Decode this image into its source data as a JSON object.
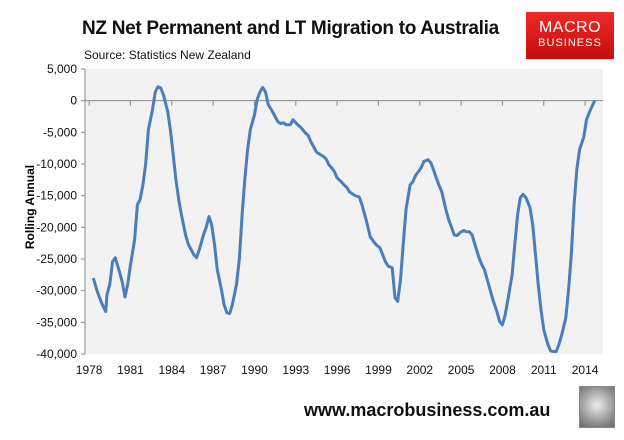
{
  "header": {
    "title": "NZ Net Permanent and LT Migration to Australia",
    "source": "Source: Statistics New Zealand"
  },
  "logo": {
    "line1": "MACRO",
    "line2": "BUSINESS"
  },
  "footer": {
    "url": "www.macrobusiness.com.au"
  },
  "colors": {
    "line": "#4a7ebb",
    "plot_bg": "#f2f2f2",
    "logo": "#e01b1b"
  },
  "chart_data": {
    "type": "line",
    "title": "NZ Net Permanent and LT Migration to Australia",
    "xlabel": "",
    "ylabel": "Rolling Annual",
    "ylim": [
      -40000,
      5000
    ],
    "xlim": [
      1977.7,
      2015.3
    ],
    "yticks": [
      5000,
      0,
      -5000,
      -10000,
      -15000,
      -20000,
      -25000,
      -30000,
      -35000,
      -40000
    ],
    "ytick_labels": [
      "5,000",
      "0",
      "-5,000",
      "-10,000",
      "-15,000",
      "-20,000",
      "-25,000",
      "-30,000",
      "-35,000",
      "-40,000"
    ],
    "xticks": [
      1978,
      1981,
      1984,
      1987,
      1990,
      1993,
      1996,
      1999,
      2002,
      2005,
      2008,
      2011,
      2014
    ],
    "xtick_labels": [
      "1978",
      "1981",
      "1984",
      "1987",
      "1990",
      "1993",
      "1996",
      "1999",
      "2002",
      "2005",
      "2008",
      "2011",
      "2014"
    ],
    "grid": false,
    "series": [
      {
        "name": "Rolling Annual",
        "points": [
          [
            1978.3,
            -28000
          ],
          [
            1978.6,
            -30200
          ],
          [
            1978.9,
            -31900
          ],
          [
            1979.2,
            -33300
          ],
          [
            1979.3,
            -30600
          ],
          [
            1979.5,
            -29000
          ],
          [
            1979.7,
            -25400
          ],
          [
            1979.9,
            -24800
          ],
          [
            1980.2,
            -27000
          ],
          [
            1980.4,
            -28600
          ],
          [
            1980.6,
            -31000
          ],
          [
            1980.8,
            -29000
          ],
          [
            1981.0,
            -25900
          ],
          [
            1981.3,
            -22000
          ],
          [
            1981.5,
            -16400
          ],
          [
            1981.7,
            -15600
          ],
          [
            1981.9,
            -13300
          ],
          [
            1982.1,
            -10100
          ],
          [
            1982.3,
            -4600
          ],
          [
            1982.6,
            -1400
          ],
          [
            1982.8,
            1400
          ],
          [
            1983.0,
            2200
          ],
          [
            1983.2,
            2000
          ],
          [
            1983.4,
            900
          ],
          [
            1983.7,
            -1700
          ],
          [
            1983.9,
            -4600
          ],
          [
            1984.1,
            -8500
          ],
          [
            1984.3,
            -12500
          ],
          [
            1984.5,
            -15600
          ],
          [
            1984.7,
            -18000
          ],
          [
            1985.0,
            -21200
          ],
          [
            1985.2,
            -22700
          ],
          [
            1985.4,
            -23500
          ],
          [
            1985.6,
            -24300
          ],
          [
            1985.8,
            -24800
          ],
          [
            1986.0,
            -23500
          ],
          [
            1986.3,
            -21200
          ],
          [
            1986.5,
            -20000
          ],
          [
            1986.7,
            -18300
          ],
          [
            1986.9,
            -19600
          ],
          [
            1987.1,
            -22700
          ],
          [
            1987.3,
            -26700
          ],
          [
            1987.6,
            -29800
          ],
          [
            1987.8,
            -32200
          ],
          [
            1988.0,
            -33500
          ],
          [
            1988.2,
            -33600
          ],
          [
            1988.4,
            -32200
          ],
          [
            1988.7,
            -29000
          ],
          [
            1988.9,
            -25100
          ],
          [
            1989.1,
            -18000
          ],
          [
            1989.3,
            -12500
          ],
          [
            1989.5,
            -7700
          ],
          [
            1989.7,
            -4600
          ],
          [
            1990.0,
            -2200
          ],
          [
            1990.2,
            200
          ],
          [
            1990.4,
            1400
          ],
          [
            1990.6,
            2100
          ],
          [
            1990.8,
            1400
          ],
          [
            1991.0,
            -600
          ],
          [
            1991.3,
            -1700
          ],
          [
            1991.5,
            -2500
          ],
          [
            1991.7,
            -3300
          ],
          [
            1991.9,
            -3600
          ],
          [
            1992.1,
            -3500
          ],
          [
            1992.3,
            -3800
          ],
          [
            1992.6,
            -3800
          ],
          [
            1992.8,
            -3000
          ],
          [
            1993.0,
            -3500
          ],
          [
            1993.2,
            -3900
          ],
          [
            1993.4,
            -4300
          ],
          [
            1993.7,
            -5100
          ],
          [
            1993.9,
            -5500
          ],
          [
            1994.1,
            -6500
          ],
          [
            1994.3,
            -7300
          ],
          [
            1994.5,
            -8100
          ],
          [
            1994.7,
            -8400
          ],
          [
            1995.0,
            -8800
          ],
          [
            1995.2,
            -9200
          ],
          [
            1995.4,
            -10100
          ],
          [
            1995.6,
            -10600
          ],
          [
            1995.8,
            -11200
          ],
          [
            1996.0,
            -12200
          ],
          [
            1996.3,
            -12800
          ],
          [
            1996.5,
            -13300
          ],
          [
            1996.7,
            -13700
          ],
          [
            1996.9,
            -14400
          ],
          [
            1997.1,
            -14700
          ],
          [
            1997.3,
            -15000
          ],
          [
            1997.6,
            -15200
          ],
          [
            1997.8,
            -16400
          ],
          [
            1998.0,
            -18000
          ],
          [
            1998.2,
            -19600
          ],
          [
            1998.4,
            -21500
          ],
          [
            1998.7,
            -22400
          ],
          [
            1998.9,
            -22900
          ],
          [
            1999.1,
            -23200
          ],
          [
            1999.3,
            -24300
          ],
          [
            1999.5,
            -25400
          ],
          [
            1999.7,
            -26100
          ],
          [
            2000.0,
            -26400
          ],
          [
            2000.2,
            -31100
          ],
          [
            2000.4,
            -31700
          ],
          [
            2000.6,
            -28300
          ],
          [
            2000.8,
            -22700
          ],
          [
            2001.0,
            -17200
          ],
          [
            2001.3,
            -13300
          ],
          [
            2001.5,
            -12800
          ],
          [
            2001.7,
            -11800
          ],
          [
            2001.9,
            -11200
          ],
          [
            2002.1,
            -10600
          ],
          [
            2002.3,
            -9600
          ],
          [
            2002.6,
            -9300
          ],
          [
            2002.8,
            -9800
          ],
          [
            2003.0,
            -10900
          ],
          [
            2003.2,
            -12200
          ],
          [
            2003.4,
            -13400
          ],
          [
            2003.6,
            -14400
          ],
          [
            2003.9,
            -17200
          ],
          [
            2004.1,
            -18800
          ],
          [
            2004.3,
            -20000
          ],
          [
            2004.5,
            -21200
          ],
          [
            2004.7,
            -21300
          ],
          [
            2005.0,
            -20700
          ],
          [
            2005.2,
            -20500
          ],
          [
            2005.4,
            -20700
          ],
          [
            2005.6,
            -20700
          ],
          [
            2005.8,
            -21200
          ],
          [
            2006.0,
            -22700
          ],
          [
            2006.3,
            -24800
          ],
          [
            2006.5,
            -25900
          ],
          [
            2006.7,
            -26700
          ],
          [
            2006.9,
            -28300
          ],
          [
            2007.1,
            -29800
          ],
          [
            2007.3,
            -31400
          ],
          [
            2007.6,
            -33300
          ],
          [
            2007.8,
            -34900
          ],
          [
            2008.0,
            -35400
          ],
          [
            2008.2,
            -33800
          ],
          [
            2008.4,
            -31400
          ],
          [
            2008.7,
            -27500
          ],
          [
            2008.9,
            -22700
          ],
          [
            2009.1,
            -18000
          ],
          [
            2009.3,
            -15300
          ],
          [
            2009.5,
            -14800
          ],
          [
            2009.7,
            -15300
          ],
          [
            2010.0,
            -16900
          ],
          [
            2010.2,
            -19600
          ],
          [
            2010.4,
            -24300
          ],
          [
            2010.6,
            -29000
          ],
          [
            2010.8,
            -33000
          ],
          [
            2011.0,
            -36200
          ],
          [
            2011.3,
            -38500
          ],
          [
            2011.5,
            -39500
          ],
          [
            2011.7,
            -39600
          ],
          [
            2011.9,
            -39600
          ],
          [
            2012.1,
            -38500
          ],
          [
            2012.3,
            -37000
          ],
          [
            2012.6,
            -34300
          ],
          [
            2012.8,
            -29800
          ],
          [
            2013.0,
            -24300
          ],
          [
            2013.2,
            -16400
          ],
          [
            2013.4,
            -10900
          ],
          [
            2013.6,
            -7700
          ],
          [
            2013.9,
            -5800
          ],
          [
            2014.1,
            -3000
          ],
          [
            2014.3,
            -1900
          ],
          [
            2014.5,
            -900
          ],
          [
            2014.7,
            0
          ]
        ]
      }
    ]
  }
}
